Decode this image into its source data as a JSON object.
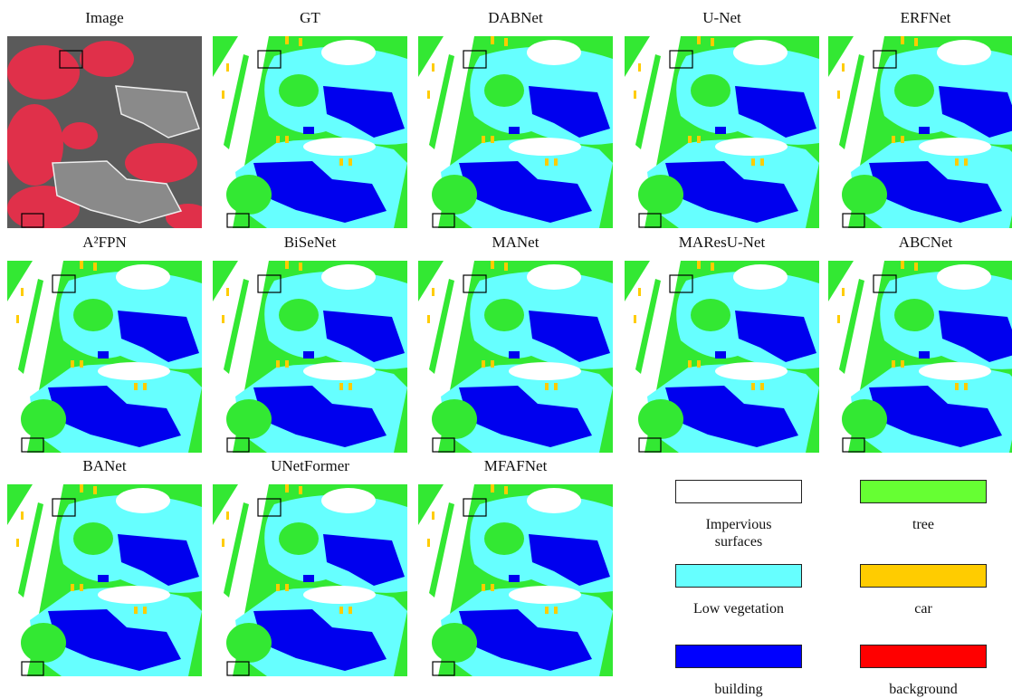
{
  "panels": [
    {
      "title": "Image"
    },
    {
      "title": "GT"
    },
    {
      "title": "DABNet"
    },
    {
      "title": "U-Net"
    },
    {
      "title": "ERFNet"
    },
    {
      "title": "A²FPN"
    },
    {
      "title": "BiSeNet"
    },
    {
      "title": "MANet"
    },
    {
      "title": "MAResU-Net"
    },
    {
      "title": "ABCNet"
    },
    {
      "title": "BANet"
    },
    {
      "title": "UNetFormer"
    },
    {
      "title": "MFAFNet"
    }
  ],
  "legend": [
    {
      "label": "Impervious surfaces",
      "color": "#ffffff"
    },
    {
      "label": "tree",
      "color": "#66ff33"
    },
    {
      "label": "Low vegetation",
      "color": "#66ffff"
    },
    {
      "label": "car",
      "color": "#ffcc00"
    },
    {
      "label": "building",
      "color": "#0000ff"
    },
    {
      "label": "background",
      "color": "#ff0000"
    }
  ]
}
